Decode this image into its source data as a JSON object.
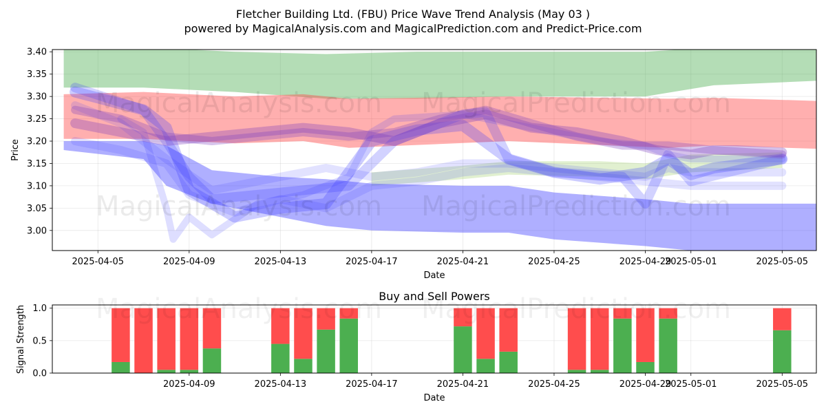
{
  "header": {
    "title_line1": "Fletcher Building Ltd. (FBU) Price Wave Trend Analysis (May 03 )",
    "title_line2": "powered by MagicalAnalysis.com and MagicalPrediction.com and Predict-Price.com"
  },
  "watermarks": [
    "MagicalAnalysis.com",
    "MagicalPrediction.com"
  ],
  "chart_data": [
    {
      "type": "area",
      "title": "Fletcher Building Ltd. (FBU) Price Wave Trend Analysis (May 03 )",
      "xlabel": "Date",
      "ylabel": "Price",
      "ylim": [
        2.955,
        3.405
      ],
      "x_day_range": [
        0,
        33.5
      ],
      "x_ticks": [
        {
          "day": 2,
          "label": "2025-04-05"
        },
        {
          "day": 6,
          "label": "2025-04-09"
        },
        {
          "day": 10,
          "label": "2025-04-13"
        },
        {
          "day": 14,
          "label": "2025-04-17"
        },
        {
          "day": 18,
          "label": "2025-04-21"
        },
        {
          "day": 22,
          "label": "2025-04-25"
        },
        {
          "day": 26,
          "label": "2025-04-29"
        },
        {
          "day": 28,
          "label": "2025-05-01"
        },
        {
          "day": 32,
          "label": "2025-05-05"
        }
      ],
      "y_ticks": [
        "3.40",
        "3.35",
        "3.30",
        "3.25",
        "3.20",
        "3.15",
        "3.10",
        "3.05",
        "3.00"
      ],
      "y_tick_values": [
        3.4,
        3.35,
        3.3,
        3.25,
        3.2,
        3.15,
        3.1,
        3.05,
        3.0
      ],
      "grid": true,
      "bands": [
        {
          "name": "green-upper-band",
          "color": "#4caf50",
          "opacity": 0.42,
          "x": [
            0.5,
            4,
            8,
            12,
            16,
            20,
            26,
            29,
            33.5
          ],
          "upper": [
            3.41,
            3.41,
            3.4,
            3.395,
            3.4,
            3.4,
            3.4,
            3.41,
            3.41
          ],
          "lower": [
            3.32,
            3.32,
            3.31,
            3.295,
            3.295,
            3.3,
            3.3,
            3.325,
            3.335
          ]
        },
        {
          "name": "red-band",
          "color": "#ff4d4d",
          "opacity": 0.45,
          "x": [
            0.5,
            4,
            8,
            11,
            13,
            20,
            27,
            29,
            33.5
          ],
          "upper": [
            3.305,
            3.31,
            3.3,
            3.305,
            3.295,
            3.3,
            3.295,
            3.297,
            3.29
          ],
          "lower": [
            3.205,
            3.205,
            3.195,
            3.2,
            3.185,
            3.2,
            3.185,
            3.19,
            3.183
          ]
        },
        {
          "name": "green-lower-band",
          "color": "#9ccc65",
          "opacity": 0.3,
          "x": [
            14,
            18,
            20,
            24,
            26,
            28,
            32
          ],
          "upper": [
            3.13,
            3.145,
            3.155,
            3.155,
            3.15,
            3.17,
            3.175
          ],
          "lower": [
            3.1,
            3.115,
            3.125,
            3.12,
            3.115,
            3.13,
            3.14
          ]
        },
        {
          "name": "blue-lower-band",
          "color": "#4d4dff",
          "opacity": 0.45,
          "x": [
            0.5,
            4,
            5,
            7,
            10,
            12,
            14,
            18,
            20,
            22,
            26,
            28,
            33.5
          ],
          "upper": [
            3.2,
            3.2,
            3.19,
            3.135,
            3.12,
            3.115,
            3.105,
            3.1,
            3.1,
            3.085,
            3.07,
            3.06,
            3.06
          ],
          "lower": [
            3.18,
            3.16,
            3.1,
            3.06,
            3.03,
            3.01,
            3.0,
            2.995,
            2.995,
            2.98,
            2.965,
            2.955,
            2.955
          ]
        }
      ],
      "wave_lines": [
        {
          "color": "#3333ff",
          "opacity": 0.25,
          "width": 16,
          "x": [
            1,
            4,
            5,
            6,
            8,
            10,
            12,
            14,
            16,
            18,
            20,
            22,
            24,
            26,
            27,
            28,
            29,
            32
          ],
          "y": [
            3.31,
            3.27,
            3.23,
            3.09,
            3.03,
            3.05,
            3.06,
            3.2,
            3.225,
            3.235,
            3.16,
            3.13,
            3.115,
            3.13,
            3.16,
            3.125,
            3.14,
            3.16
          ]
        },
        {
          "color": "#3333ff",
          "opacity": 0.22,
          "width": 14,
          "x": [
            1,
            4,
            5,
            6,
            7,
            9,
            11,
            13,
            15,
            18,
            19,
            20,
            22,
            25,
            26,
            27,
            28,
            32
          ],
          "y": [
            3.32,
            3.27,
            3.2,
            3.12,
            3.07,
            3.08,
            3.09,
            3.1,
            3.2,
            3.26,
            3.265,
            3.16,
            3.13,
            3.12,
            3.06,
            3.17,
            3.11,
            3.16
          ]
        },
        {
          "color": "#3333ff",
          "opacity": 0.16,
          "width": 10,
          "x": [
            3,
            4,
            5,
            5.3,
            6,
            7,
            9,
            11,
            13,
            14,
            15,
            18,
            20,
            22,
            24,
            26,
            27,
            28,
            32
          ],
          "y": [
            3.25,
            3.22,
            3.05,
            2.98,
            3.03,
            2.99,
            3.06,
            3.08,
            3.12,
            3.22,
            3.25,
            3.26,
            3.24,
            3.22,
            3.2,
            3.19,
            3.17,
            3.16,
            3.16
          ]
        },
        {
          "color": "#3333ff",
          "opacity": 0.14,
          "width": 12,
          "x": [
            1,
            3,
            5,
            7,
            10,
            12,
            14,
            16,
            18,
            20,
            22,
            24,
            26,
            27,
            28,
            32
          ],
          "y": [
            3.28,
            3.24,
            3.16,
            3.09,
            3.12,
            3.14,
            3.12,
            3.13,
            3.15,
            3.15,
            3.14,
            3.13,
            3.12,
            3.14,
            3.13,
            3.13
          ]
        },
        {
          "color": "#3333ff",
          "opacity": 0.14,
          "width": 12,
          "x": [
            1,
            3,
            5,
            6,
            8,
            10,
            12,
            14,
            16,
            18,
            20,
            22,
            24,
            26,
            28,
            32
          ],
          "y": [
            3.2,
            3.18,
            3.15,
            3.08,
            3.04,
            3.07,
            3.05,
            3.1,
            3.11,
            3.13,
            3.14,
            3.13,
            3.12,
            3.11,
            3.1,
            3.1
          ]
        },
        {
          "color": "#7b3fbf",
          "opacity": 0.32,
          "width": 14,
          "x": [
            1,
            3,
            5,
            7,
            9,
            11,
            13,
            15,
            17,
            19,
            21,
            23,
            25,
            26.5,
            28,
            29,
            30,
            32
          ],
          "y": [
            3.24,
            3.22,
            3.2,
            3.21,
            3.22,
            3.23,
            3.22,
            3.2,
            3.24,
            3.26,
            3.23,
            3.22,
            3.2,
            3.18,
            3.17,
            3.18,
            3.18,
            3.175
          ]
        },
        {
          "color": "#7b3fbf",
          "opacity": 0.3,
          "width": 12,
          "x": [
            1,
            3,
            5,
            7,
            9,
            11,
            13,
            15,
            17,
            19,
            21,
            23,
            25,
            27,
            29,
            32
          ],
          "y": [
            3.27,
            3.25,
            3.21,
            3.2,
            3.21,
            3.22,
            3.21,
            3.22,
            3.25,
            3.27,
            3.24,
            3.21,
            3.19,
            3.19,
            3.18,
            3.17
          ]
        }
      ]
    },
    {
      "type": "bar",
      "title": "Buy and Sell Powers",
      "xlabel": "Date",
      "ylabel": "Signal Strength",
      "ylim": [
        0,
        1.05
      ],
      "x_day_range": [
        0,
        33.5
      ],
      "x_ticks": [
        {
          "day": 6,
          "label": "2025-04-09"
        },
        {
          "day": 10,
          "label": "2025-04-13"
        },
        {
          "day": 14,
          "label": "2025-04-17"
        },
        {
          "day": 18,
          "label": "2025-04-21"
        },
        {
          "day": 22,
          "label": "2025-04-25"
        },
        {
          "day": 26,
          "label": "2025-04-29"
        },
        {
          "day": 28,
          "label": "2025-05-01"
        },
        {
          "day": 32,
          "label": "2025-05-05"
        }
      ],
      "y_ticks": [
        "0.0",
        "0.5",
        "1.0"
      ],
      "y_tick_values": [
        0,
        0.5,
        1.0
      ],
      "colors": {
        "buy": "#4caf50",
        "sell": "#ff4d4d"
      },
      "series": [
        {
          "name": "Buy",
          "days": [
            3,
            4,
            5,
            6,
            7,
            10,
            11,
            12,
            13,
            18,
            19,
            20,
            23,
            24,
            25,
            26,
            27,
            32
          ],
          "values": [
            0.17,
            0.0,
            0.05,
            0.05,
            0.38,
            0.45,
            0.22,
            0.67,
            0.84,
            0.72,
            0.22,
            0.33,
            0.05,
            0.05,
            0.84,
            0.17,
            0.84,
            0.66
          ]
        },
        {
          "name": "Sell",
          "days": [
            3,
            4,
            5,
            6,
            7,
            10,
            11,
            12,
            13,
            18,
            19,
            20,
            23,
            24,
            25,
            26,
            27,
            32
          ],
          "values": [
            0.83,
            1.0,
            0.95,
            0.95,
            0.62,
            0.55,
            0.78,
            0.33,
            0.16,
            0.28,
            0.78,
            0.67,
            0.95,
            0.95,
            0.16,
            0.83,
            0.16,
            0.34
          ]
        }
      ]
    }
  ]
}
